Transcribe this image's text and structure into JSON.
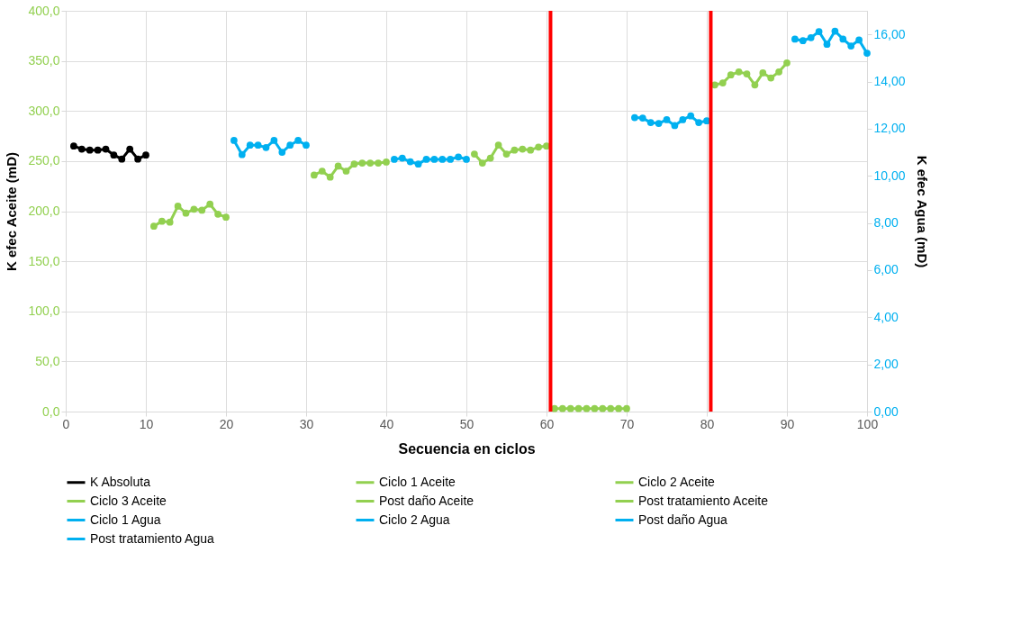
{
  "chart_data": {
    "type": "line",
    "xlabel": "Secuencia en ciclos",
    "ylabel": "K efec Aceite (mD)",
    "y2label": "K efec Agua (mD)",
    "xlim": [
      0,
      100
    ],
    "xticks": [
      0,
      10,
      20,
      30,
      40,
      50,
      60,
      70,
      80,
      90,
      100
    ],
    "ylim": [
      0,
      400
    ],
    "yticks": [
      {
        "value": 0,
        "label": "0,0"
      },
      {
        "value": 50,
        "label": "50,0"
      },
      {
        "value": 100,
        "label": "100,0"
      },
      {
        "value": 150,
        "label": "150,0"
      },
      {
        "value": 200,
        "label": "200,0"
      },
      {
        "value": 250,
        "label": "250,0"
      },
      {
        "value": 300,
        "label": "300,0"
      },
      {
        "value": 350,
        "label": "350,0"
      },
      {
        "value": 400,
        "label": "400,0"
      }
    ],
    "y2lim": [
      0,
      17
    ],
    "y2ticks": [
      {
        "value": 0,
        "label": "0,00"
      },
      {
        "value": 2,
        "label": "2,00"
      },
      {
        "value": 4,
        "label": "4,00"
      },
      {
        "value": 6,
        "label": "6,00"
      },
      {
        "value": 8,
        "label": "8,00"
      },
      {
        "value": 10,
        "label": "10,00"
      },
      {
        "value": 12,
        "label": "12,00"
      },
      {
        "value": 14,
        "label": "14,00"
      },
      {
        "value": 16,
        "label": "16,00"
      }
    ],
    "grid": true,
    "legend": "bottom",
    "marker": "circle",
    "ref_lines": [
      {
        "axis": "x",
        "value": 60.5,
        "color": "#ff0000"
      },
      {
        "axis": "x",
        "value": 80.5,
        "color": "#ff0000"
      }
    ],
    "series": [
      {
        "name": "K Absoluta",
        "color": "#000000",
        "x": [
          1,
          2,
          3,
          4,
          5,
          6,
          7,
          8,
          9,
          10
        ],
        "values": [
          265,
          262,
          261,
          261,
          262,
          256,
          252,
          262,
          252,
          256
        ]
      },
      {
        "name": "Ciclo 1 Aceite",
        "color": "#92d050",
        "x": [
          11,
          12,
          13,
          14,
          15,
          16,
          17,
          18,
          19,
          20
        ],
        "values": [
          185,
          190,
          189,
          205,
          198,
          202,
          201,
          207,
          197,
          194
        ]
      },
      {
        "name": "Ciclo 2 Aceite",
        "color": "#92d050",
        "x": [
          31,
          32,
          33,
          34,
          35,
          36,
          37,
          38,
          39,
          40
        ],
        "values": [
          236,
          240,
          234,
          245,
          240,
          247,
          248,
          248,
          248,
          249
        ]
      },
      {
        "name": "Ciclo 3 Aceite",
        "color": "#92d050",
        "x": [
          51,
          52,
          53,
          54,
          55,
          56,
          57,
          58,
          59,
          60
        ],
        "values": [
          257,
          248,
          253,
          266,
          257,
          261,
          262,
          261,
          264,
          265
        ]
      },
      {
        "name": "Post daño Aceite",
        "color": "#92d050",
        "x": [
          61,
          62,
          63,
          64,
          65,
          66,
          67,
          68,
          69,
          70
        ],
        "values": [
          3,
          3,
          3,
          3,
          3,
          3,
          3,
          3,
          3,
          3
        ]
      },
      {
        "name": "Post tratamiento Aceite",
        "color": "#92d050",
        "x": [
          81,
          82,
          83,
          84,
          85,
          86,
          87,
          88,
          89,
          90
        ],
        "values": [
          326,
          328,
          336,
          339,
          337,
          326,
          338,
          333,
          339,
          348
        ]
      },
      {
        "name": "Ciclo 1 Agua",
        "color": "#00b0f0",
        "axis": "y2",
        "x": [
          21,
          22,
          23,
          24,
          25,
          26,
          27,
          28,
          29,
          30
        ],
        "values": [
          11.5,
          10.9,
          11.3,
          11.3,
          11.2,
          11.5,
          11.0,
          11.3,
          11.5,
          11.3
        ]
      },
      {
        "name": "Ciclo 2 Agua",
        "color": "#00b0f0",
        "axis": "y2",
        "x": [
          41,
          42,
          43,
          44,
          45,
          46,
          47,
          48,
          49,
          50
        ],
        "values": [
          10.7,
          10.75,
          10.6,
          10.5,
          10.7,
          10.7,
          10.7,
          10.7,
          10.8,
          10.7
        ]
      },
      {
        "name": "Post daño Agua",
        "color": "#00b0f0",
        "axis": "y2",
        "x": [
          71,
          72,
          73,
          74,
          75,
          76,
          77,
          78,
          79,
          80
        ],
        "values": [
          12.47,
          12.45,
          12.26,
          12.22,
          12.38,
          12.13,
          12.38,
          12.54,
          12.26,
          12.33
        ]
      },
      {
        "name": "Post tratamiento Agua",
        "color": "#00b0f0",
        "axis": "y2",
        "x": [
          91,
          92,
          93,
          94,
          95,
          96,
          97,
          98,
          99,
          100
        ],
        "values": [
          15.8,
          15.73,
          15.86,
          16.12,
          15.58,
          16.14,
          15.8,
          15.51,
          15.76,
          15.2
        ]
      }
    ]
  }
}
